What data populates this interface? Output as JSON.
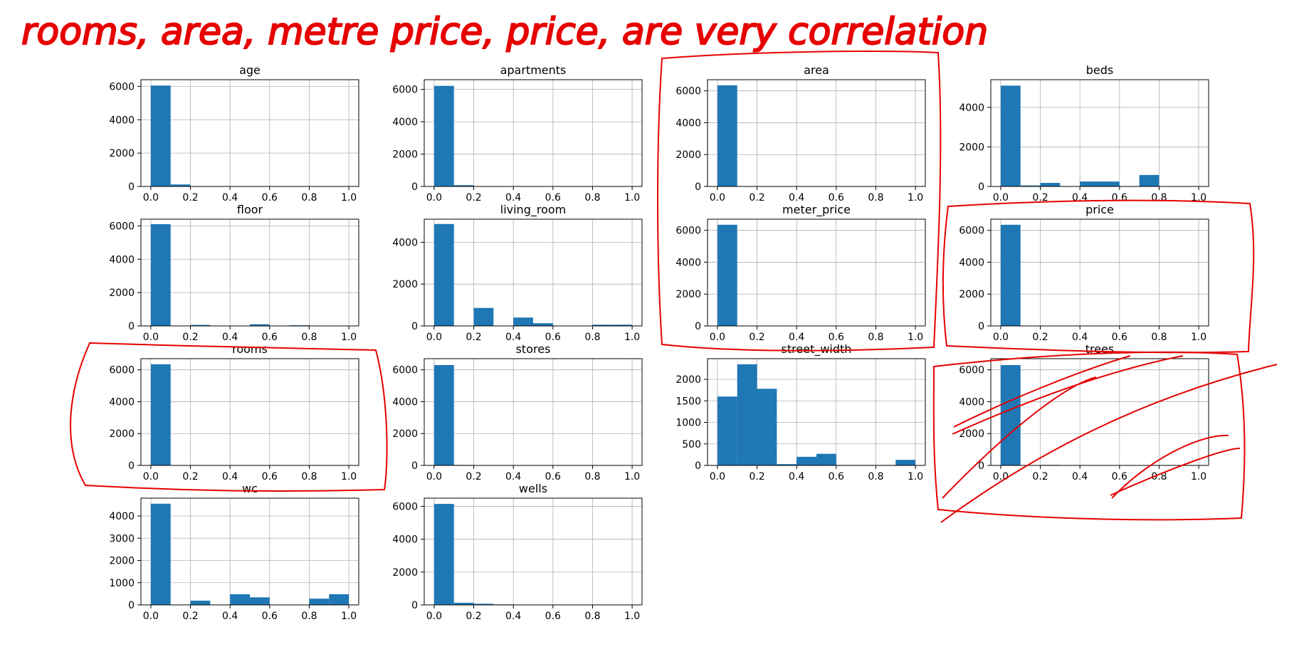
{
  "annotation": {
    "text": "rooms, area, metre price, price, are very correlation",
    "color": "#e60000"
  },
  "chart_data": {
    "type": "bar",
    "bar_color": "#1f77b4",
    "bins": [
      0.0,
      0.1,
      0.2,
      0.3,
      0.4,
      0.5,
      0.6,
      0.7,
      0.8,
      0.9,
      1.0
    ],
    "xticks": [
      "0.0",
      "0.2",
      "0.4",
      "0.6",
      "0.8",
      "1.0"
    ],
    "xlim": [
      -0.05,
      1.05
    ],
    "grid": true,
    "panels": [
      {
        "title": "age",
        "values": [
          6050,
          120,
          20,
          0,
          10,
          10,
          5,
          0,
          0,
          0
        ],
        "ylim": [
          0,
          6400
        ],
        "yticks": [
          "0",
          "2000",
          "4000",
          "6000"
        ]
      },
      {
        "title": "apartments",
        "values": [
          6220,
          80,
          10,
          0,
          0,
          0,
          0,
          0,
          0,
          0
        ],
        "ylim": [
          0,
          6600
        ],
        "yticks": [
          "0",
          "2000",
          "4000",
          "6000"
        ]
      },
      {
        "title": "area",
        "values": [
          6350,
          10,
          0,
          0,
          0,
          0,
          0,
          0,
          0,
          0
        ],
        "ylim": [
          0,
          6700
        ],
        "yticks": [
          "0",
          "2000",
          "4000",
          "6000"
        ]
      },
      {
        "title": "beds",
        "values": [
          5100,
          50,
          180,
          0,
          250,
          250,
          0,
          580,
          0,
          0
        ],
        "ylim": [
          0,
          5400
        ],
        "yticks": [
          "0",
          "2000",
          "4000"
        ]
      },
      {
        "title": "floor",
        "values": [
          6100,
          0,
          60,
          0,
          0,
          100,
          0,
          40,
          0,
          0
        ],
        "ylim": [
          0,
          6400
        ],
        "yticks": [
          "0",
          "2000",
          "4000",
          "6000"
        ]
      },
      {
        "title": "living_room",
        "values": [
          4870,
          0,
          860,
          0,
          400,
          130,
          0,
          0,
          60,
          60
        ],
        "ylim": [
          0,
          5100
        ],
        "yticks": [
          "0",
          "2000",
          "4000"
        ]
      },
      {
        "title": "meter_price",
        "values": [
          6350,
          5,
          0,
          0,
          0,
          0,
          0,
          0,
          0,
          0
        ],
        "ylim": [
          0,
          6700
        ],
        "yticks": [
          "0",
          "2000",
          "4000",
          "6000"
        ]
      },
      {
        "title": "price",
        "values": [
          6350,
          5,
          0,
          0,
          0,
          0,
          0,
          0,
          0,
          0
        ],
        "ylim": [
          0,
          6700
        ],
        "yticks": [
          "0",
          "2000",
          "4000",
          "6000"
        ]
      },
      {
        "title": "rooms",
        "values": [
          6350,
          5,
          0,
          0,
          0,
          0,
          0,
          0,
          0,
          0
        ],
        "ylim": [
          0,
          6700
        ],
        "yticks": [
          "0",
          "2000",
          "4000",
          "6000"
        ]
      },
      {
        "title": "stores",
        "values": [
          6300,
          30,
          20,
          0,
          0,
          0,
          0,
          0,
          0,
          0
        ],
        "ylim": [
          0,
          6700
        ],
        "yticks": [
          "0",
          "2000",
          "4000",
          "6000"
        ]
      },
      {
        "title": "street_width",
        "values": [
          1600,
          2350,
          1780,
          30,
          200,
          270,
          10,
          10,
          10,
          130
        ],
        "ylim": [
          0,
          2480
        ],
        "yticks": [
          "0",
          "500",
          "1000",
          "1500",
          "2000"
        ]
      },
      {
        "title": "trees",
        "values": [
          6300,
          0,
          30,
          0,
          0,
          0,
          0,
          0,
          0,
          0
        ],
        "ylim": [
          0,
          6700
        ],
        "yticks": [
          "0",
          "2000",
          "4000",
          "6000"
        ]
      },
      {
        "title": "wc",
        "values": [
          4550,
          0,
          190,
          0,
          480,
          340,
          0,
          0,
          280,
          480
        ],
        "ylim": [
          0,
          4800
        ],
        "yticks": [
          "0",
          "1000",
          "2000",
          "3000",
          "4000"
        ]
      },
      {
        "title": "wells",
        "values": [
          6150,
          130,
          70,
          30,
          10,
          0,
          0,
          0,
          0,
          0
        ],
        "ylim": [
          0,
          6500
        ],
        "yticks": [
          "0",
          "2000",
          "4000",
          "6000"
        ]
      }
    ]
  }
}
